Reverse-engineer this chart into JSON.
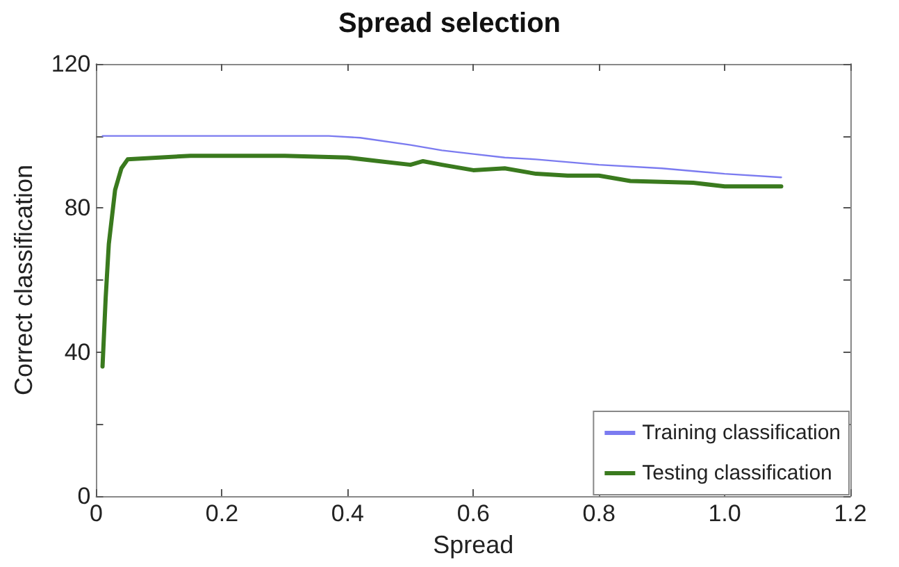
{
  "chart_data": {
    "type": "line",
    "title": "Spread selection",
    "xlabel": "Spread",
    "ylabel": "Correct classification",
    "xlim": [
      0,
      1.2
    ],
    "xticks": [
      0,
      0.2,
      0.4,
      0.6,
      0.8,
      {
        "value": 1.0,
        "label": "1.0"
      },
      1.2
    ],
    "ylim": [
      0,
      120
    ],
    "yticks": [
      0,
      {
        "value": 20,
        "label": null
      },
      40,
      {
        "value": 60,
        "label": null
      },
      80,
      {
        "value": 100,
        "label": null
      },
      120
    ],
    "grid": false,
    "legend": "bottom right",
    "marker": "none",
    "line_style": "solid",
    "series": [
      {
        "name": "Training classification",
        "color": "#7b7bf0",
        "x": [
          0.01,
          0.1,
          0.2,
          0.3,
          0.37,
          0.42,
          0.5,
          0.55,
          0.6,
          0.65,
          0.7,
          0.8,
          0.9,
          1.0,
          1.09
        ],
        "values": [
          100,
          100,
          100,
          100,
          100,
          99.5,
          97.5,
          96,
          95,
          94,
          93.5,
          92,
          91,
          89.5,
          88.5
        ]
      },
      {
        "name": "Testing classification",
        "color": "#3a7a1e",
        "x": [
          0.01,
          0.015,
          0.02,
          0.03,
          0.04,
          0.05,
          0.1,
          0.15,
          0.3,
          0.4,
          0.45,
          0.5,
          0.52,
          0.55,
          0.6,
          0.65,
          0.7,
          0.75,
          0.8,
          0.85,
          0.95,
          1.0,
          1.09
        ],
        "values": [
          36,
          55,
          70,
          85,
          91,
          93.5,
          94,
          94.5,
          94.5,
          94,
          93,
          92,
          93,
          92,
          90.5,
          91,
          89.5,
          89,
          89,
          87.5,
          87,
          86,
          86
        ]
      }
    ]
  }
}
